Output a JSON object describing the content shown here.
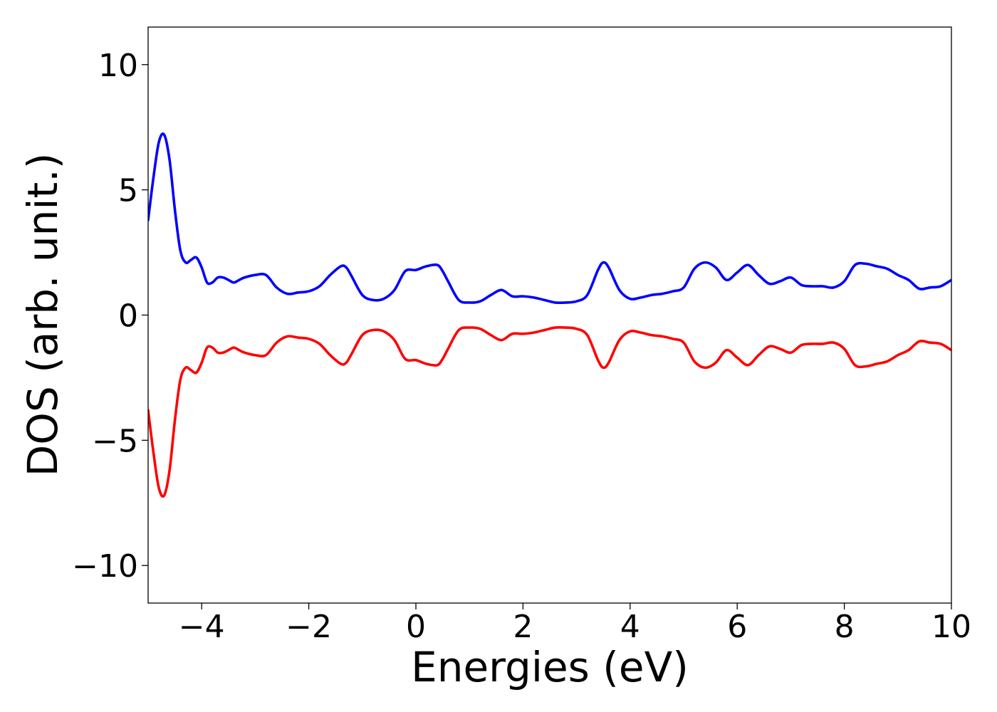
{
  "chart_data": {
    "type": "line",
    "title": "",
    "xlabel": "Energies (eV)",
    "ylabel": "DOS (arb. unit.)",
    "xlim": [
      -5,
      10
    ],
    "ylim": [
      -11.5,
      11.5
    ],
    "xticks": [
      -4,
      -2,
      0,
      2,
      4,
      6,
      8,
      10
    ],
    "xtick_labels": [
      "−4",
      "−2",
      "0",
      "2",
      "4",
      "6",
      "8",
      "10"
    ],
    "yticks": [
      -10,
      -5,
      0,
      5,
      10
    ],
    "ytick_labels": [
      "−10",
      "−5",
      "0",
      "5",
      "10"
    ],
    "grid": false,
    "legend": "none",
    "series": [
      {
        "color": "#0000ff",
        "x": [
          -5.0,
          -4.9,
          -4.8,
          -4.7,
          -4.6,
          -4.5,
          -4.4,
          -4.3,
          -4.2,
          -4.1,
          -4.0,
          -3.9,
          -3.8,
          -3.7,
          -3.6,
          -3.5,
          -3.4,
          -3.3,
          -3.2,
          -3.0,
          -2.8,
          -2.6,
          -2.4,
          -2.2,
          -2.0,
          -1.8,
          -1.6,
          -1.4,
          -1.3,
          -1.2,
          -1.0,
          -0.8,
          -0.6,
          -0.4,
          -0.2,
          0.0,
          0.2,
          0.4,
          0.5,
          0.6,
          0.8,
          1.0,
          1.2,
          1.4,
          1.6,
          1.8,
          2.0,
          2.2,
          2.4,
          2.6,
          2.8,
          3.0,
          3.2,
          3.4,
          3.5,
          3.6,
          3.8,
          4.0,
          4.2,
          4.4,
          4.6,
          4.8,
          5.0,
          5.2,
          5.4,
          5.6,
          5.8,
          6.0,
          6.2,
          6.4,
          6.6,
          6.8,
          7.0,
          7.2,
          7.4,
          7.6,
          7.8,
          8.0,
          8.2,
          8.4,
          8.6,
          8.8,
          9.0,
          9.2,
          9.4,
          9.6,
          9.8,
          10.0
        ],
        "y": [
          3.8,
          5.5,
          6.9,
          7.2,
          6.2,
          4.2,
          2.6,
          2.1,
          2.2,
          2.3,
          1.9,
          1.3,
          1.3,
          1.5,
          1.5,
          1.4,
          1.3,
          1.4,
          1.5,
          1.6,
          1.6,
          1.1,
          0.85,
          0.9,
          0.95,
          1.15,
          1.6,
          1.95,
          1.9,
          1.55,
          0.8,
          0.6,
          0.65,
          1.0,
          1.75,
          1.8,
          1.95,
          2.0,
          1.75,
          1.35,
          0.6,
          0.5,
          0.55,
          0.8,
          1.0,
          0.75,
          0.75,
          0.7,
          0.6,
          0.5,
          0.5,
          0.55,
          0.8,
          1.8,
          2.1,
          1.9,
          1.0,
          0.65,
          0.7,
          0.8,
          0.85,
          0.95,
          1.1,
          1.85,
          2.1,
          1.9,
          1.4,
          1.7,
          2.0,
          1.6,
          1.25,
          1.35,
          1.5,
          1.2,
          1.15,
          1.15,
          1.1,
          1.35,
          2.0,
          2.05,
          1.95,
          1.85,
          1.6,
          1.4,
          1.05,
          1.1,
          1.15,
          1.4
        ]
      },
      {
        "color": "#ff0000",
        "x": [
          -5.0,
          -4.9,
          -4.8,
          -4.7,
          -4.6,
          -4.5,
          -4.4,
          -4.3,
          -4.2,
          -4.1,
          -4.0,
          -3.9,
          -3.8,
          -3.7,
          -3.6,
          -3.5,
          -3.4,
          -3.3,
          -3.2,
          -3.0,
          -2.8,
          -2.6,
          -2.4,
          -2.2,
          -2.0,
          -1.8,
          -1.6,
          -1.4,
          -1.3,
          -1.2,
          -1.0,
          -0.8,
          -0.6,
          -0.4,
          -0.2,
          0.0,
          0.2,
          0.4,
          0.5,
          0.6,
          0.8,
          1.0,
          1.2,
          1.4,
          1.6,
          1.8,
          2.0,
          2.2,
          2.4,
          2.6,
          2.8,
          3.0,
          3.2,
          3.4,
          3.5,
          3.6,
          3.8,
          4.0,
          4.2,
          4.4,
          4.6,
          4.8,
          5.0,
          5.2,
          5.4,
          5.6,
          5.8,
          6.0,
          6.2,
          6.4,
          6.6,
          6.8,
          7.0,
          7.2,
          7.4,
          7.6,
          7.8,
          8.0,
          8.2,
          8.4,
          8.6,
          8.8,
          9.0,
          9.2,
          9.4,
          9.6,
          9.8,
          10.0
        ],
        "y": [
          -3.8,
          -5.5,
          -6.9,
          -7.2,
          -6.2,
          -4.2,
          -2.6,
          -2.1,
          -2.2,
          -2.3,
          -1.9,
          -1.3,
          -1.3,
          -1.5,
          -1.5,
          -1.4,
          -1.3,
          -1.4,
          -1.5,
          -1.6,
          -1.6,
          -1.1,
          -0.85,
          -0.9,
          -0.95,
          -1.15,
          -1.6,
          -1.95,
          -1.9,
          -1.55,
          -0.8,
          -0.6,
          -0.65,
          -1.0,
          -1.75,
          -1.8,
          -1.95,
          -2.0,
          -1.75,
          -1.35,
          -0.6,
          -0.5,
          -0.55,
          -0.8,
          -1.0,
          -0.75,
          -0.75,
          -0.7,
          -0.6,
          -0.5,
          -0.5,
          -0.55,
          -0.8,
          -1.8,
          -2.1,
          -1.9,
          -1.0,
          -0.65,
          -0.7,
          -0.8,
          -0.85,
          -0.95,
          -1.1,
          -1.85,
          -2.1,
          -1.9,
          -1.4,
          -1.7,
          -2.0,
          -1.6,
          -1.25,
          -1.35,
          -1.5,
          -1.2,
          -1.15,
          -1.15,
          -1.1,
          -1.35,
          -2.0,
          -2.05,
          -1.95,
          -1.85,
          -1.6,
          -1.4,
          -1.05,
          -1.1,
          -1.15,
          -1.4
        ]
      }
    ]
  }
}
